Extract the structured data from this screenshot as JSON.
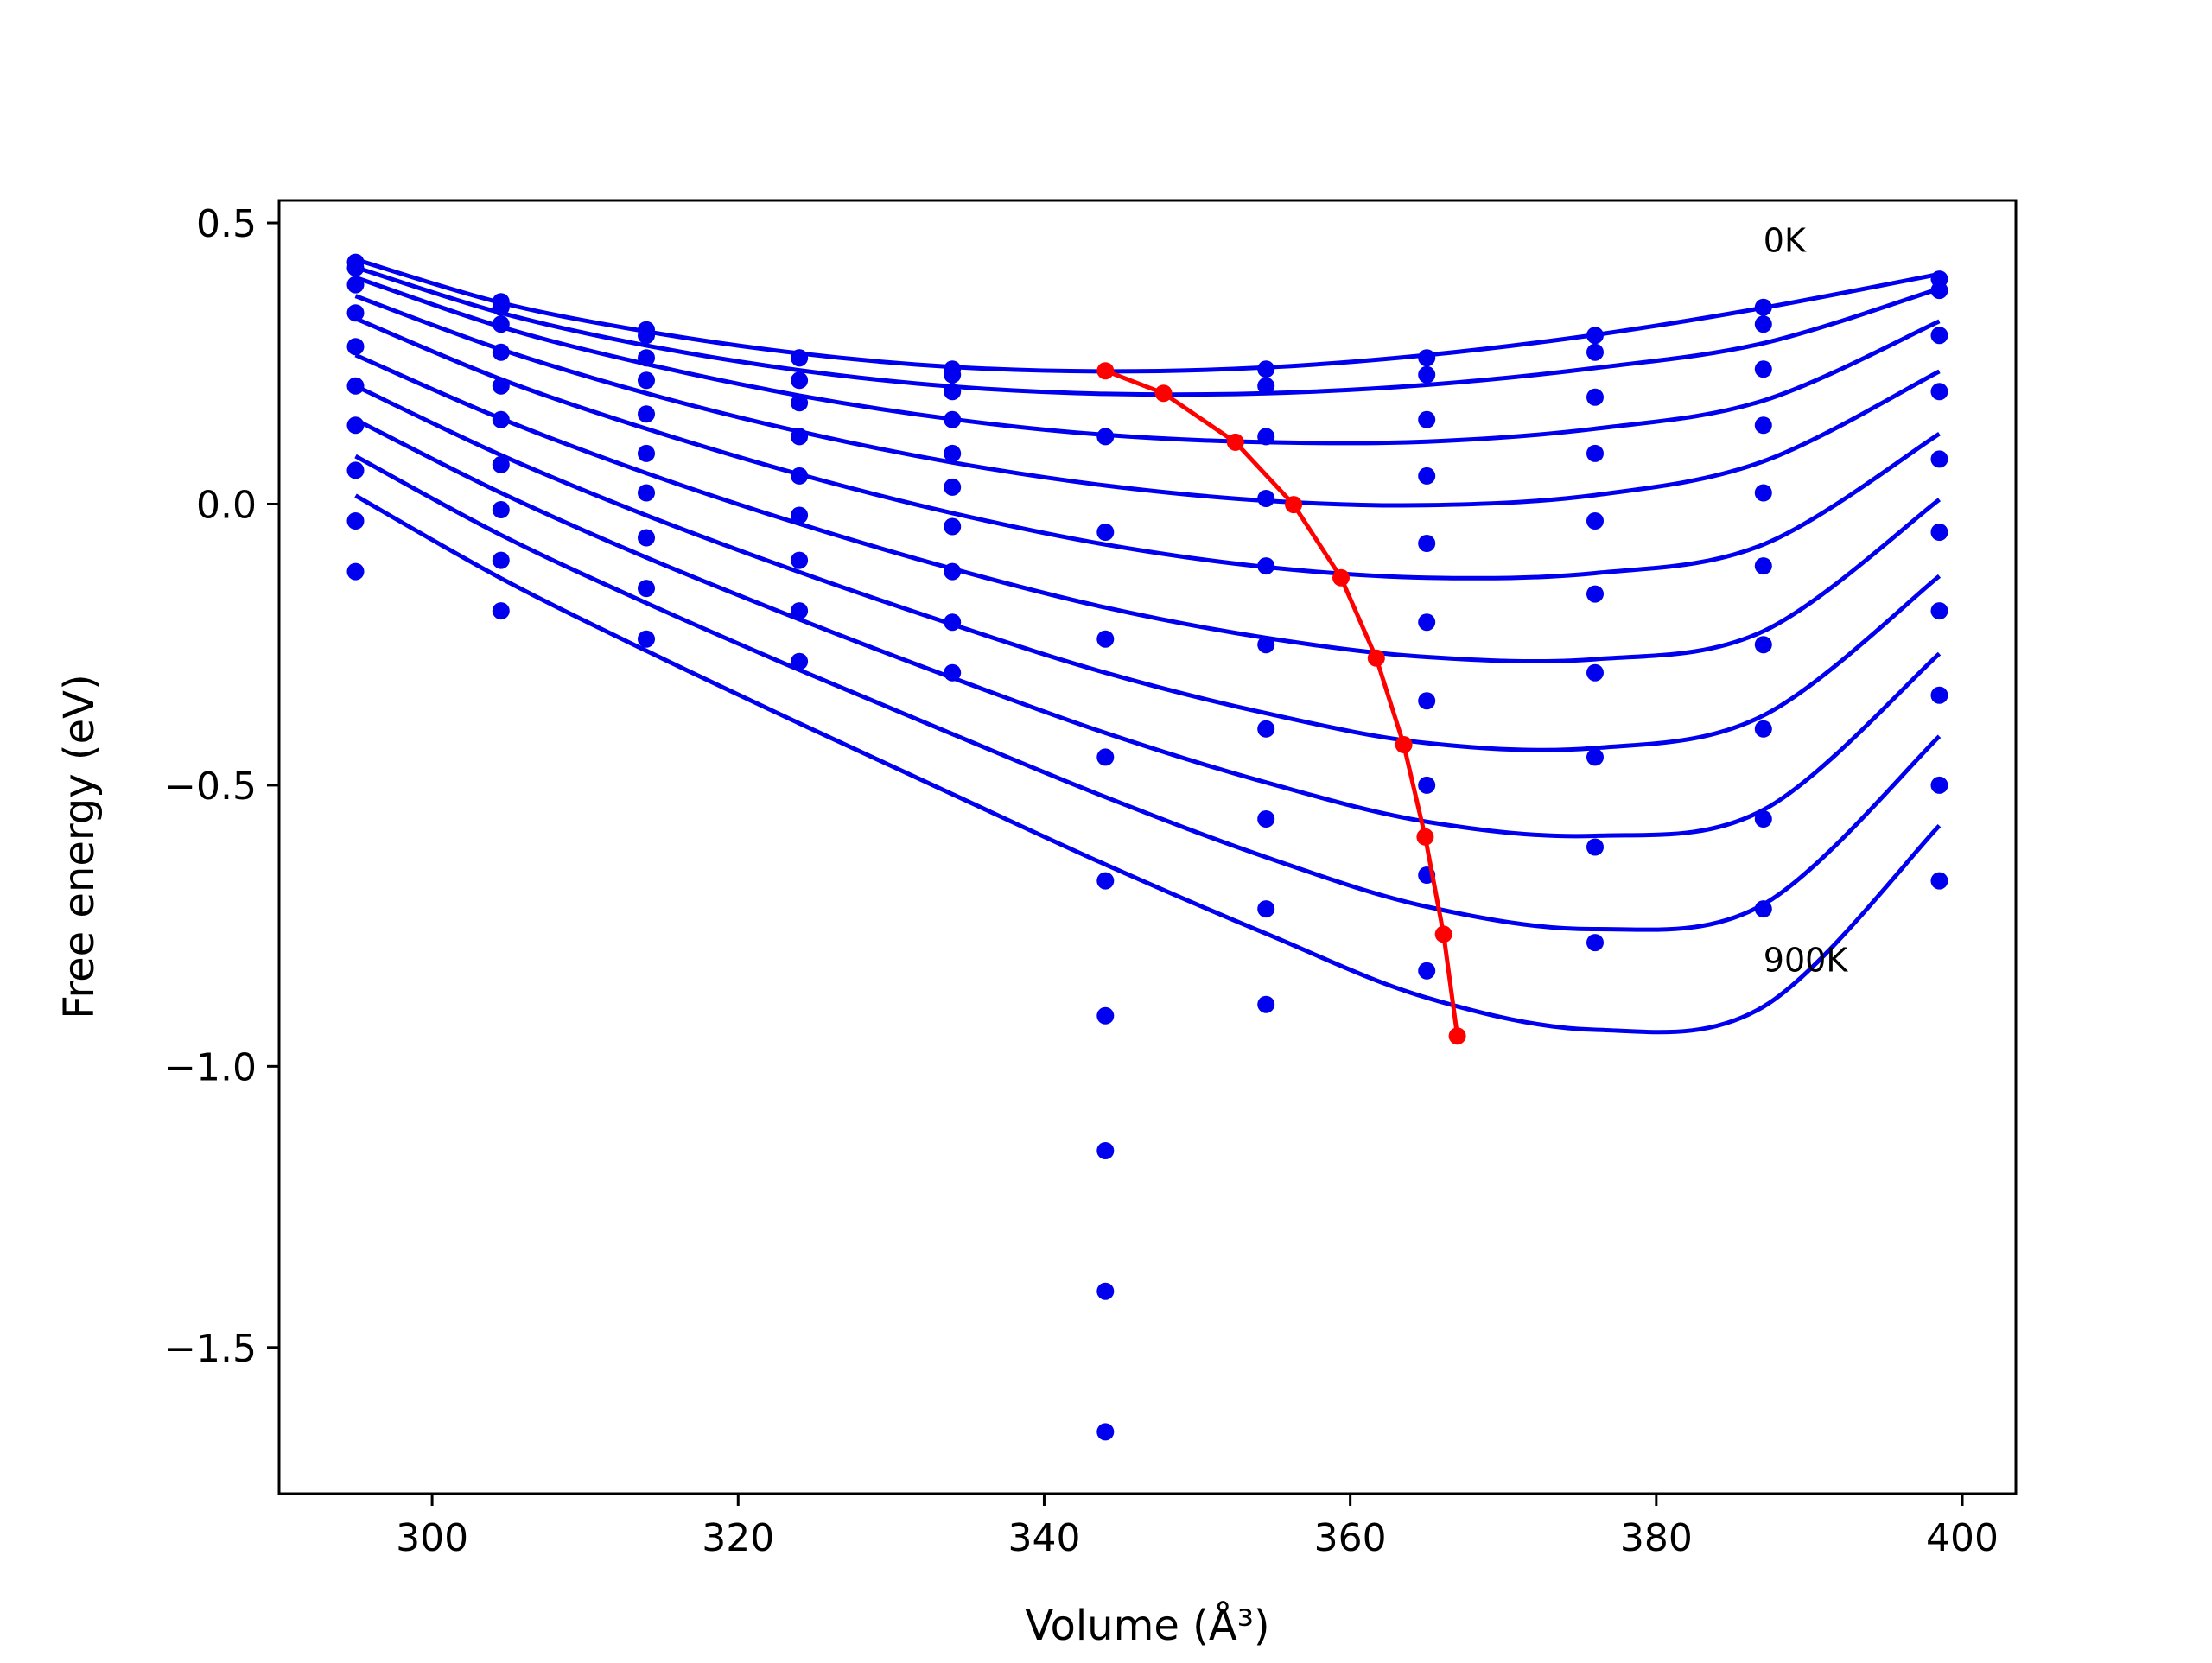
{
  "chart_data": {
    "type": "scatter",
    "title": "",
    "xlabel": "Volume (Å³)",
    "ylabel": "Free energy (eV)",
    "xlim": [
      290,
      403.5
    ],
    "ylim": [
      -1.76,
      0.54
    ],
    "xticks": [
      300,
      320,
      340,
      360,
      380,
      400
    ],
    "xtick_labels": [
      "300",
      "320",
      "340",
      "360",
      "380",
      "400"
    ],
    "yticks": [
      0.5,
      0.0,
      -0.5,
      -1.0,
      -1.5
    ],
    "ytick_labels": [
      "0.5",
      "0.0",
      "−0.5",
      "−1.0",
      "−1.5"
    ],
    "grid": false,
    "annotations": [
      {
        "text": "0K",
        "x": 387,
        "y": 0.47
      },
      {
        "text": "900K",
        "x": 387,
        "y": -0.81
      }
    ],
    "colors": {
      "series": "#0000ee",
      "equilibrium": "#ff0000"
    },
    "scatter_series": [
      {
        "x": [
          295,
          304.5,
          314,
          324,
          334,
          344,
          354.5,
          365,
          376,
          387,
          398.5
        ],
        "y": [
          -0.12,
          -0.19,
          -0.24,
          -0.28,
          -0.3,
          -1.65,
          null,
          null,
          null,
          null,
          null
        ]
      },
      {
        "x": [
          295,
          304.5,
          314,
          324,
          334,
          344,
          354.5,
          365,
          376,
          387,
          398.5
        ],
        "y": [
          -0.03,
          -0.1,
          -0.15,
          -0.19,
          -0.21,
          -1.4,
          -0.89,
          -0.83,
          -0.78,
          -0.72,
          -0.67
        ]
      },
      {
        "x": [
          295,
          304.5,
          314,
          324,
          334,
          344,
          354.5,
          365,
          376,
          387,
          398.5
        ],
        "y": [
          0.06,
          -0.01,
          -0.06,
          -0.1,
          -0.12,
          -1.15,
          -0.72,
          -0.66,
          -0.61,
          -0.56,
          -0.5
        ]
      },
      {
        "x": [
          295,
          304.5,
          314,
          324,
          334,
          344,
          354.5,
          365,
          376,
          387,
          398.5
        ],
        "y": [
          0.14,
          0.07,
          0.02,
          -0.02,
          -0.04,
          -0.91,
          -0.56,
          -0.5,
          -0.45,
          -0.4,
          -0.34
        ]
      },
      {
        "x": [
          295,
          304.5,
          314,
          324,
          334,
          344,
          354.5,
          365,
          376,
          387,
          398.5
        ],
        "y": [
          0.21,
          0.15,
          0.09,
          0.05,
          0.03,
          -0.67,
          -0.4,
          -0.35,
          -0.3,
          -0.25,
          -0.19
        ]
      },
      {
        "x": [
          295,
          304.5,
          314,
          324,
          334,
          344,
          354.5,
          365,
          376,
          387,
          398.5
        ],
        "y": [
          0.28,
          0.21,
          0.16,
          0.12,
          0.09,
          -0.45,
          -0.25,
          -0.21,
          -0.16,
          -0.11,
          -0.05
        ]
      },
      {
        "x": [
          295,
          304.5,
          314,
          324,
          334,
          344,
          354.5,
          365,
          376,
          387,
          398.5
        ],
        "y": [
          0.34,
          0.27,
          0.22,
          0.18,
          0.15,
          -0.24,
          -0.11,
          -0.07,
          -0.03,
          0.02,
          0.08
        ]
      },
      {
        "x": [
          295,
          304.5,
          314,
          324,
          334,
          344,
          354.5,
          365,
          376,
          387,
          398.5
        ],
        "y": [
          0.39,
          0.32,
          0.26,
          0.22,
          0.2,
          -0.05,
          0.01,
          0.05,
          0.09,
          0.14,
          0.2
        ]
      },
      {
        "x": [
          295,
          304.5,
          314,
          324,
          334,
          344,
          354.5,
          365,
          376,
          387,
          398.5
        ],
        "y": [
          0.42,
          0.35,
          0.3,
          0.26,
          0.23,
          0.12,
          0.12,
          0.15,
          0.19,
          0.24,
          0.3
        ]
      },
      {
        "x": [
          295,
          304.5,
          314,
          324,
          334,
          344,
          354.5,
          365,
          376,
          387,
          398.5
        ],
        "y": [
          0.43,
          0.36,
          0.31,
          0.26,
          0.24,
          null,
          0.21,
          0.23,
          0.27,
          0.32,
          0.38
        ]
      },
      {
        "x": [
          295,
          304.5,
          314,
          324,
          334,
          344,
          354.5,
          365,
          376,
          387,
          398.5
        ],
        "y": [
          null,
          null,
          null,
          null,
          null,
          null,
          0.24,
          0.26,
          0.3,
          0.35,
          0.4
        ]
      }
    ],
    "fit_curves": [
      {
        "x": [
          295,
          304.5,
          314,
          324,
          334,
          344,
          354.5,
          365,
          376,
          387,
          398.5
        ],
        "y": [
          0.435,
          0.358,
          0.307,
          0.268,
          0.244,
          0.236,
          0.243,
          0.265,
          0.301,
          0.349,
          0.409
        ]
      },
      {
        "x": [
          295,
          304.5,
          314,
          324,
          334,
          344,
          354.5,
          365,
          376,
          387,
          398.5
        ],
        "y": [
          0.421,
          0.34,
          0.282,
          0.238,
          0.209,
          0.196,
          0.197,
          0.212,
          0.242,
          0.286,
          0.383
        ]
      },
      {
        "x": [
          295,
          304.5,
          314,
          324,
          334,
          344,
          354.5,
          365,
          376,
          387,
          398.5
        ],
        "y": [
          0.403,
          0.315,
          0.249,
          0.193,
          0.151,
          0.123,
          0.11,
          0.111,
          0.134,
          0.184,
          0.325
        ]
      },
      {
        "x": [
          295,
          304.5,
          314,
          324,
          334,
          344,
          354.5,
          365,
          376,
          387,
          398.5
        ],
        "y": [
          0.37,
          0.275,
          0.197,
          0.129,
          0.074,
          0.033,
          0.006,
          -0.002,
          0.016,
          0.076,
          0.236
        ]
      },
      {
        "x": [
          295,
          304.5,
          314,
          324,
          334,
          344,
          354.5,
          365,
          376,
          387,
          398.5
        ],
        "y": [
          0.33,
          0.222,
          0.134,
          0.053,
          -0.016,
          -0.072,
          -0.112,
          -0.131,
          -0.123,
          -0.072,
          0.125
        ]
      },
      {
        "x": [
          295,
          304.5,
          314,
          324,
          334,
          344,
          354.5,
          365,
          376,
          387,
          398.5
        ],
        "y": [
          0.265,
          0.152,
          0.055,
          -0.035,
          -0.115,
          -0.184,
          -0.238,
          -0.272,
          -0.276,
          -0.226,
          0.008
        ]
      },
      {
        "x": [
          295,
          304.5,
          314,
          324,
          334,
          344,
          354.5,
          365,
          376,
          387,
          398.5
        ],
        "y": [
          0.21,
          0.087,
          -0.02,
          -0.121,
          -0.214,
          -0.3,
          -0.372,
          -0.425,
          -0.434,
          -0.376,
          -0.128
        ]
      },
      {
        "x": [
          295,
          304.5,
          314,
          324,
          334,
          344,
          354.5,
          365,
          376,
          387,
          398.5
        ],
        "y": [
          0.15,
          0.02,
          -0.095,
          -0.205,
          -0.309,
          -0.407,
          -0.495,
          -0.565,
          -0.59,
          -0.544,
          -0.266
        ]
      },
      {
        "x": [
          295,
          304.5,
          314,
          324,
          334,
          344,
          354.5,
          365,
          376,
          387,
          398.5
        ],
        "y": [
          0.085,
          -0.055,
          -0.176,
          -0.295,
          -0.409,
          -0.521,
          -0.628,
          -0.716,
          -0.756,
          -0.712,
          -0.413
        ]
      },
      {
        "x": [
          295,
          304.5,
          314,
          324,
          334,
          344,
          354.5,
          365,
          376,
          387,
          398.5
        ],
        "y": [
          0.015,
          -0.132,
          -0.261,
          -0.39,
          -0.516,
          -0.641,
          -0.764,
          -0.878,
          -0.935,
          -0.894,
          -0.572
        ]
      }
    ],
    "equilibrium_line": {
      "x": [
        344,
        347.8,
        352.5,
        356.3,
        359.4,
        361.7,
        363.5,
        364.9,
        366.1,
        367.0
      ],
      "y": [
        0.237,
        0.197,
        0.11,
        -0.001,
        -0.131,
        -0.274,
        -0.428,
        -0.592,
        -0.765,
        -0.946
      ]
    }
  }
}
